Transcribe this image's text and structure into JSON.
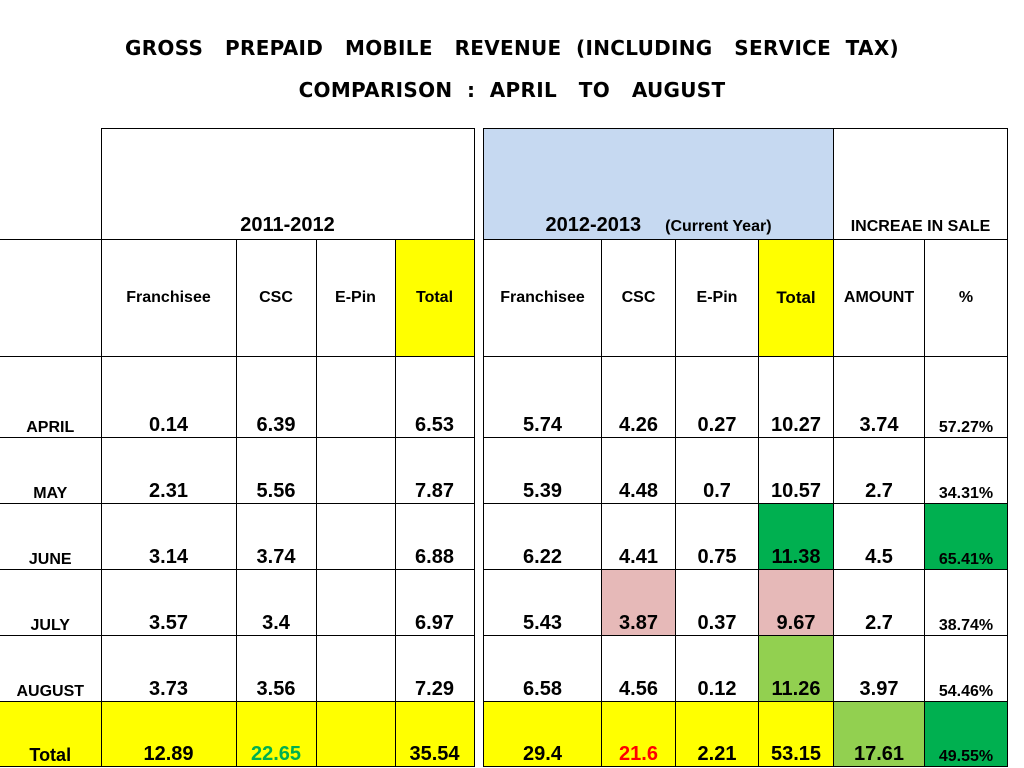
{
  "title_line1": "GROSS   PREPAID   MOBILE   REVENUE  (INCLUDING   SERVICE  TAX)",
  "title_line2": "COMPARISON  :  APRIL   TO   AUGUST",
  "period_prev": "2011-2012",
  "period_curr": "2012-2013",
  "period_curr_note": "(Current  Year)",
  "increase_header": "INCREAE  IN SALE",
  "columns_prev": [
    "Franchisee",
    "CSC",
    "E-Pin",
    "Total"
  ],
  "columns_curr": [
    "Franchisee",
    "CSC",
    "E-Pin",
    "Total"
  ],
  "columns_increase": [
    "AMOUNT",
    "%"
  ],
  "rows": [
    {
      "month": "APRIL",
      "prev": [
        "0.14",
        "6.39",
        "",
        "6.53"
      ],
      "curr": [
        "5.74",
        "4.26",
        "0.27",
        "10.27"
      ],
      "amount": "3.74",
      "pct": "57.27%"
    },
    {
      "month": "MAY",
      "prev": [
        "2.31",
        "5.56",
        "",
        "7.87"
      ],
      "curr": [
        "5.39",
        "4.48",
        "0.7",
        "10.57"
      ],
      "amount": "2.7",
      "pct": "34.31%"
    },
    {
      "month": "JUNE",
      "prev": [
        "3.14",
        "3.74",
        "",
        "6.88"
      ],
      "curr": [
        "6.22",
        "4.41",
        "0.75",
        "11.38"
      ],
      "amount": "4.5",
      "pct": "65.41%"
    },
    {
      "month": "JULY",
      "prev": [
        "3.57",
        "3.4",
        "",
        "6.97"
      ],
      "curr": [
        "5.43",
        "3.87",
        "0.37",
        "9.67"
      ],
      "amount": "2.7",
      "pct": "38.74%"
    },
    {
      "month": "AUGUST",
      "prev": [
        "3.73",
        "3.56",
        "",
        "7.29"
      ],
      "curr": [
        "6.58",
        "4.56",
        "0.12",
        "11.26"
      ],
      "amount": "3.97",
      "pct": "54.46%"
    }
  ],
  "total": {
    "label": "Total",
    "prev": [
      "12.89",
      "22.65",
      "",
      "35.54"
    ],
    "curr": [
      "29.4",
      "21.6",
      "2.21",
      "53.15"
    ],
    "amount": "17.61",
    "pct": "49.55%"
  },
  "colors": {
    "highlight_yellow": "#ffff00",
    "header_blue": "#c6d9f1",
    "dark_green": "#00b050",
    "light_green": "#92d050",
    "pink": "#e6b9b8",
    "red_text": "#ff0000",
    "green_text": "#00b050"
  }
}
